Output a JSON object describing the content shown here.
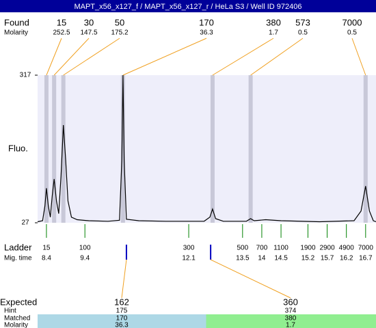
{
  "chart_data": {
    "type": "electropherogram",
    "title": "MAPT_x56_x127_f / MAPT_x56_x127_r / HeLa S3 / Well ID 972406",
    "ylabel": "Fluo.",
    "ylim": [
      27,
      317
    ],
    "yticks": [
      27,
      317
    ],
    "xlim": [
      8.17,
      16.97
    ],
    "plot_color": "#eeeefa",
    "trace": {
      "color": "#000000",
      "x": [
        8.17,
        8.3,
        8.36,
        8.4,
        8.45,
        8.5,
        8.55,
        8.6,
        8.66,
        8.72,
        8.78,
        8.84,
        8.9,
        8.96,
        9.05,
        9.2,
        9.5,
        10.0,
        10.3,
        10.36,
        10.39,
        10.42,
        10.48,
        10.8,
        11.5,
        12.5,
        12.65,
        12.72,
        12.8,
        13.0,
        13.6,
        13.71,
        13.8,
        14.1,
        14.5,
        15.5,
        16.4,
        16.58,
        16.7,
        16.8,
        16.9,
        16.97
      ],
      "values": [
        29,
        31,
        60,
        95,
        60,
        38,
        80,
        113,
        70,
        45,
        120,
        219,
        150,
        70,
        38,
        33,
        31,
        30,
        32,
        150,
        317,
        150,
        34,
        31,
        30,
        30,
        38,
        54,
        35,
        30,
        30,
        35,
        31,
        33,
        31,
        29,
        31,
        50,
        99,
        50,
        31,
        29
      ]
    },
    "found": {
      "label": "Found",
      "molarity_label": "Molarity",
      "sizes": [
        15,
        30,
        50,
        170,
        380,
        573,
        7000
      ],
      "molarity": [
        252.5,
        147.5,
        175.2,
        36.3,
        1.7,
        0.5,
        0.5
      ],
      "x": [
        8.4,
        8.6,
        8.84,
        10.39,
        12.72,
        13.71,
        16.7
      ],
      "band_color": "#c8c8d8",
      "line_color": "#f0a020"
    },
    "ladder": {
      "label": "Ladder",
      "time_label": "Mig. time",
      "sizes": [
        15,
        100,
        300,
        500,
        700,
        1100,
        1900,
        2900,
        4900,
        7000
      ],
      "x": [
        8.4,
        9.4,
        12.1,
        13.5,
        14,
        14.5,
        15.2,
        15.7,
        16.2,
        16.7
      ],
      "color": "#008000"
    },
    "expected": {
      "label": "Expected",
      "hint_label": "Hint",
      "matched_label": "Matched",
      "molarity_label": "Molarity",
      "sizes": [
        162,
        360
      ],
      "hint": [
        175,
        374
      ],
      "matched": [
        170,
        380
      ],
      "molarity": [
        36.3,
        1.7
      ],
      "x": [
        10.48,
        12.67
      ],
      "marker_color": "#0000c0",
      "colors": [
        "#add8e6",
        "#90ee90"
      ]
    }
  }
}
